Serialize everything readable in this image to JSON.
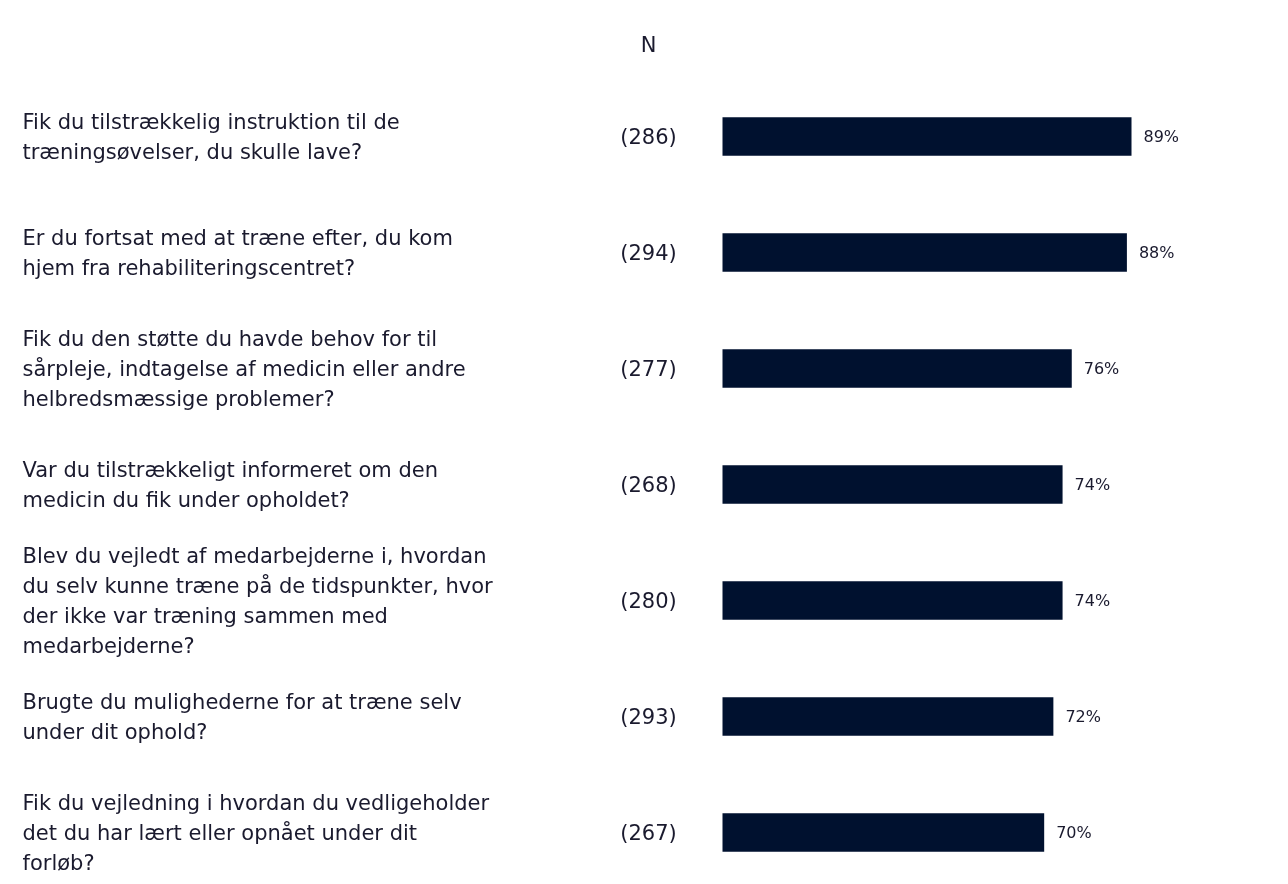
{
  "chart_data": {
    "type": "bar",
    "orientation": "horizontal",
    "categories": [
      "Fik du tilstrækkelig instruktion til de træningsøvelser, du skulle lave?",
      "Er du fortsat med at træne efter, du kom hjem fra rehabiliteringscentret?",
      "Fik du den støtte du havde behov for til sårpleje, indtagelse af medicin eller andre helbredsmæssige problemer?",
      "Var du tilstrækkeligt informeret om den medicin du fik under opholdet?",
      "Blev du vejledt af medarbejderne i, hvordan du selv kunne træne på de tidspunkter, hvor der ikke var træning sammen med medarbejderne?",
      "Brugte du mulighederne for at træne selv under dit ophold?",
      "Fik du vejledning i hvordan du vedligeholder det du har lært eller opnået under dit forløb?"
    ],
    "values": [
      89,
      88,
      76,
      74,
      74,
      72,
      70
    ],
    "value_labels": [
      "89%",
      "88%",
      "76%",
      "74%",
      "74%",
      "72%",
      "70%"
    ],
    "color": "#00112f",
    "tick_labels": false,
    "grid": false,
    "annotations": [
      "N",
      "(286)",
      "(294)",
      "(277)",
      "(268)",
      "(280)",
      "(293)",
      "(267)"
    ]
  }
}
